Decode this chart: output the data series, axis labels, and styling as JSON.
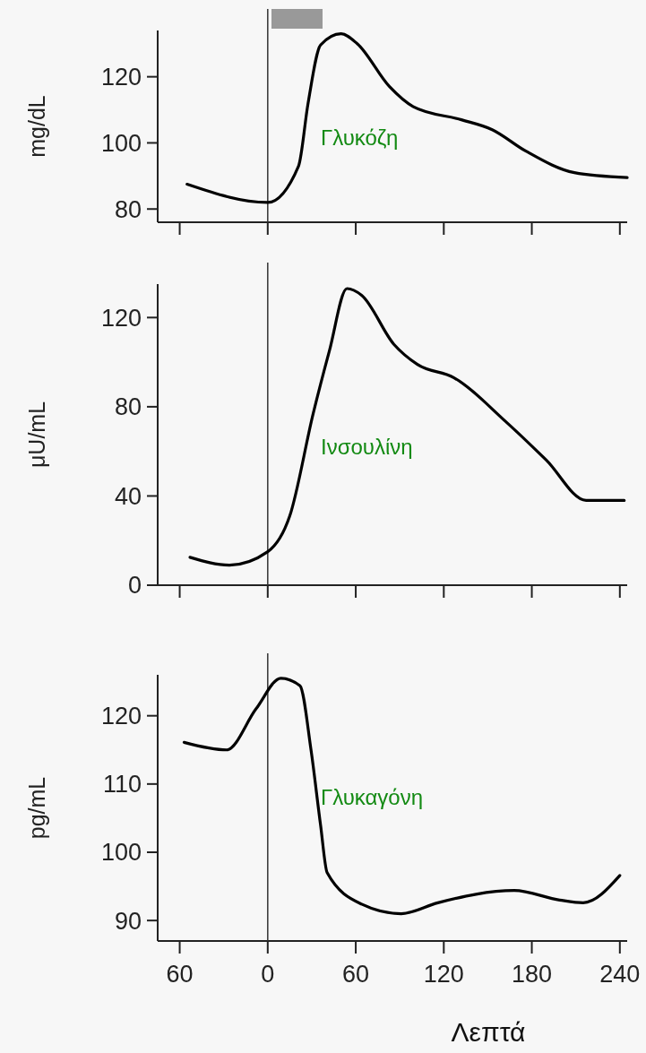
{
  "chart_data": [
    {
      "type": "line",
      "ylabel": "mg/dL",
      "xlim": [
        -75,
        245
      ],
      "xticks": [
        {
          "value": -60,
          "label": null
        },
        {
          "value": 0,
          "label": null
        },
        {
          "value": 60,
          "label": null
        },
        {
          "value": 120,
          "label": null
        },
        {
          "value": 180,
          "label": null
        },
        {
          "value": 240,
          "label": null
        }
      ],
      "ylim": [
        76,
        134
      ],
      "yticks": [
        80,
        100,
        120
      ],
      "tick_labels": "y",
      "marker": "none",
      "series": [
        {
          "name": "Γλυκόζη",
          "color": "#000000",
          "x": [
            -55,
            0,
            21,
            27.5,
            36,
            50,
            61,
            83,
            99,
            132,
            153,
            176,
            209,
            245
          ],
          "values": [
            87.5,
            82,
            93,
            112,
            129.6,
            133,
            130,
            117,
            111,
            107,
            104,
            97.5,
            91,
            89.5
          ]
        }
      ],
      "ref_lines": [
        {
          "axis": "x",
          "value": 0
        }
      ]
    },
    {
      "type": "line",
      "ylabel": "μU/mL",
      "xlim": [
        -75,
        245
      ],
      "xticks": [
        {
          "value": -60,
          "label": null
        },
        {
          "value": 0,
          "label": null
        },
        {
          "value": 60,
          "label": null
        },
        {
          "value": 120,
          "label": null
        },
        {
          "value": 180,
          "label": null
        },
        {
          "value": 240,
          "label": null
        }
      ],
      "ylim": [
        0,
        135
      ],
      "yticks": [
        0,
        40,
        80,
        120
      ],
      "tick_labels": "y",
      "marker": "none",
      "series": [
        {
          "name": "Ινσουλίνη",
          "color": "#000000",
          "x": [
            -53,
            -26,
            0,
            15,
            31,
            42,
            54,
            64,
            86,
            102,
            127,
            162,
            190,
            217,
            243
          ],
          "values": [
            12.5,
            9,
            15,
            31,
            77,
            105,
            133,
            130,
            108,
            99,
            93,
            73.5,
            56,
            38,
            38
          ]
        }
      ],
      "ref_lines": [
        {
          "axis": "x",
          "value": 0
        }
      ]
    },
    {
      "type": "line",
      "ylabel": "pg/mL",
      "xlabel": "Λεπτά",
      "xlim": [
        -75,
        245
      ],
      "xticks": [
        {
          "value": -60,
          "label": "60"
        },
        0,
        60,
        120,
        180,
        240
      ],
      "ylim": [
        87,
        126
      ],
      "yticks": [
        90,
        100,
        110,
        120
      ],
      "marker": "none",
      "series": [
        {
          "name": "Γλυκαγόνη",
          "color": "#000000",
          "x": [
            -57,
            -28,
            -8,
            9,
            22,
            29.5,
            36,
            40.5,
            64,
            91,
            116,
            168,
            199,
            215,
            240
          ],
          "values": [
            116.1,
            115,
            121,
            125.5,
            124.4,
            115,
            104,
            97,
            92.4,
            91,
            92.6,
            94.4,
            93,
            92.6,
            96.6
          ]
        }
      ],
      "ref_lines": [
        {
          "axis": "x",
          "value": 0
        }
      ]
    }
  ]
}
